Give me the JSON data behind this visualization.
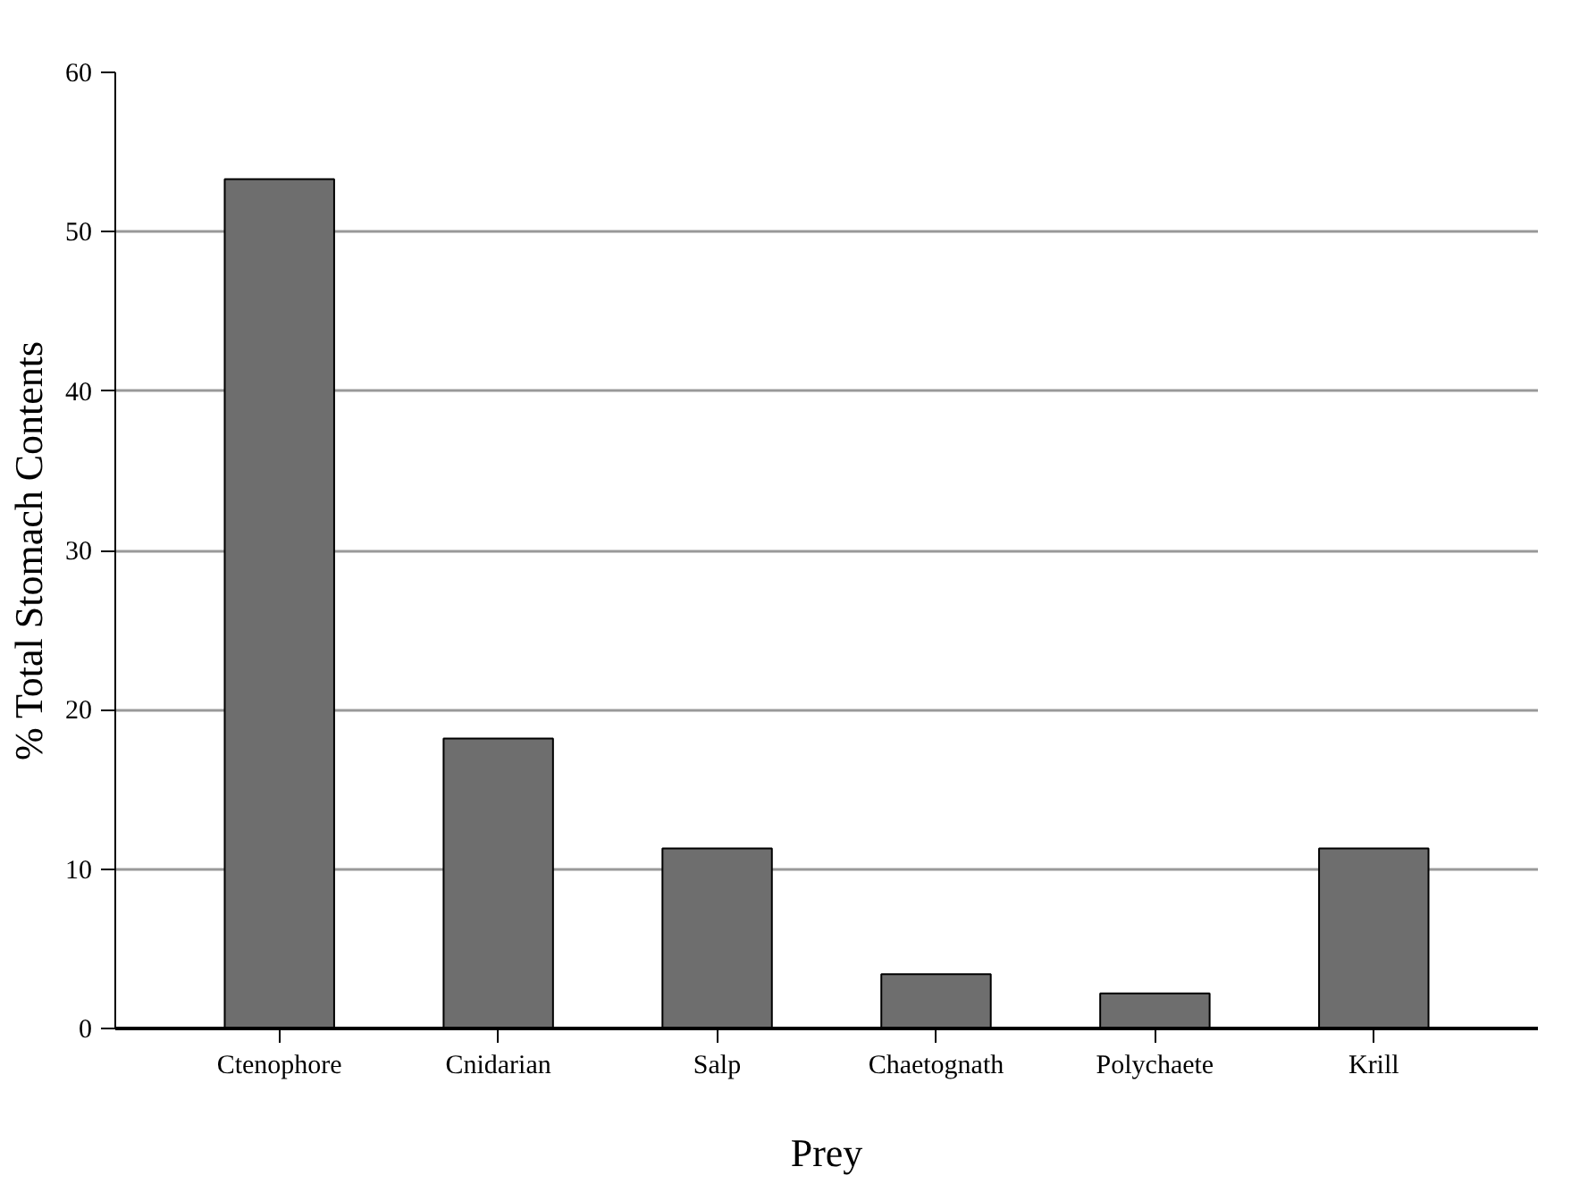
{
  "chart_data": {
    "type": "bar",
    "xlabel": "Prey",
    "ylabel": "% Total Stomach Contents",
    "categories": [
      "Ctenophore",
      "Cnidarian",
      "Salp",
      "Chaetognath",
      "Polychaete",
      "Krill"
    ],
    "values": [
      53.3,
      18.2,
      11.3,
      3.4,
      2.2,
      11.3
    ],
    "color": "#6e6e6e",
    "ylim": [
      0,
      60
    ],
    "yticks": [
      0,
      10,
      20,
      30,
      40,
      50,
      60
    ],
    "grid": "y"
  }
}
